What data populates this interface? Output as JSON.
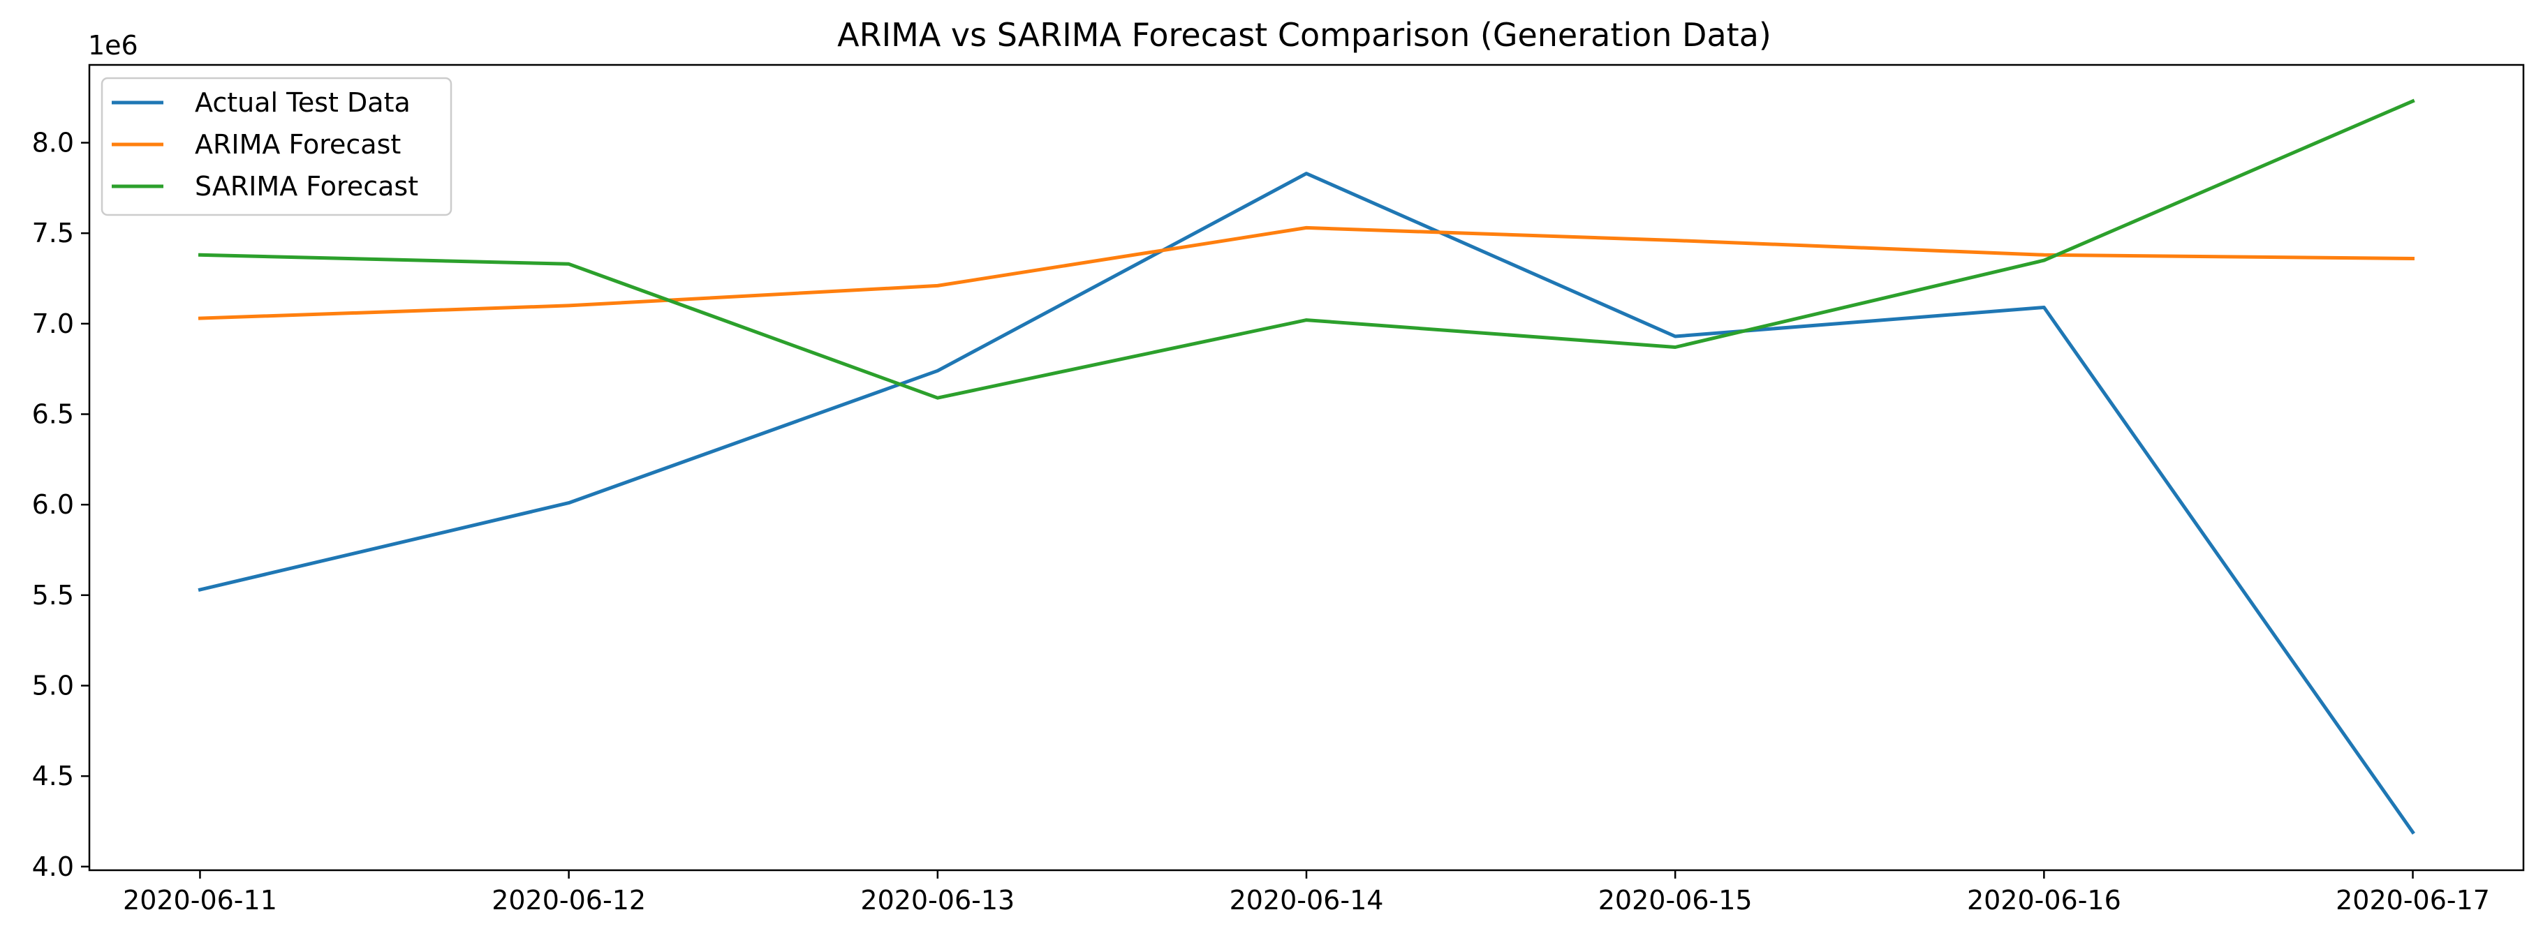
{
  "chart_data": {
    "type": "line",
    "title": "ARIMA vs SARIMA Forecast Comparison (Generation Data)",
    "xlabel": "",
    "ylabel": "",
    "y_offset_label": "1e6",
    "x": [
      "2020-06-11",
      "2020-06-12",
      "2020-06-13",
      "2020-06-14",
      "2020-06-15",
      "2020-06-16",
      "2020-06-17"
    ],
    "xlim": [
      -0.3,
      6.3
    ],
    "ylim": [
      3.98,
      8.43
    ],
    "y_scale_factor": 1000000,
    "yticks": [
      4.0,
      4.5,
      5.0,
      5.5,
      6.0,
      6.5,
      7.0,
      7.5,
      8.0
    ],
    "ytick_labels": [
      "4.0",
      "4.5",
      "5.0",
      "5.5",
      "6.0",
      "6.5",
      "7.0",
      "7.5",
      "8.0"
    ],
    "grid": false,
    "legend_position": "top-left",
    "series": [
      {
        "name": "Actual Test Data",
        "color": "#1f77b4",
        "values": [
          5.53,
          6.01,
          6.74,
          7.83,
          6.93,
          7.09,
          4.19
        ]
      },
      {
        "name": "ARIMA Forecast",
        "color": "#ff7f0e",
        "values": [
          7.03,
          7.1,
          7.21,
          7.53,
          7.46,
          7.38,
          7.36
        ]
      },
      {
        "name": "SARIMA Forecast",
        "color": "#2ca02c",
        "values": [
          7.38,
          7.33,
          6.59,
          7.02,
          6.87,
          7.35,
          8.23
        ]
      }
    ]
  }
}
